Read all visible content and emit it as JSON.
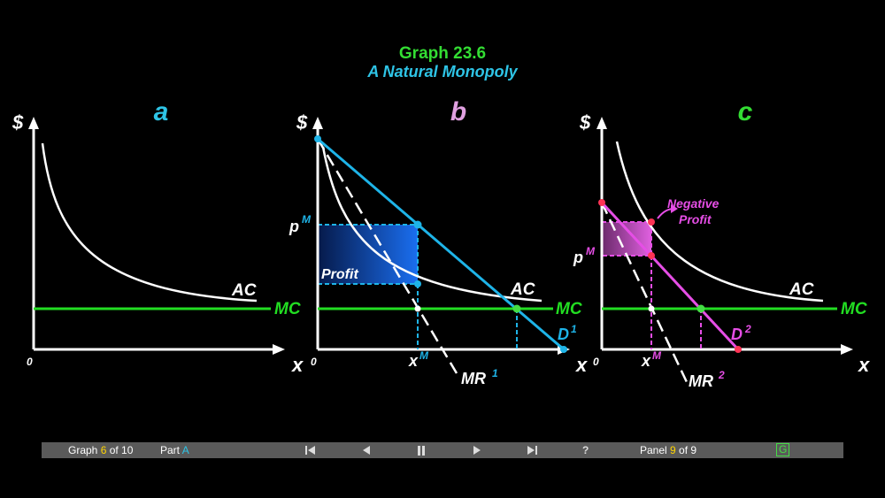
{
  "title": "Graph 23.6",
  "subtitle": "A Natural Monopoly",
  "colors": {
    "title": "#33dd33",
    "subtitle": "#2ec4e6",
    "axes": "#ffffff",
    "mc": "#22dd22",
    "ac": "#ffffff",
    "demand_b": "#1eb4e8",
    "demand_c": "#e64ee6",
    "profit": "#1565e0",
    "neg_profit": "#c050c0",
    "point_red": "#ff3355",
    "highlight": "#ffd400",
    "nav_bg": "#5a5a5a"
  },
  "panels": {
    "a": {
      "letter": "a",
      "letter_color": "#2ec4e6",
      "y_axis_label": "$",
      "x_axis_label": "x",
      "origin_label": "0",
      "ac_label": "AC",
      "mc_label": "MC"
    },
    "b": {
      "letter": "b",
      "letter_color": "#e0a0e0",
      "y_axis_label": "$",
      "x_axis_label": "x",
      "origin_label": "0",
      "ac_label": "AC",
      "mc_label": "MC",
      "price_label": "p",
      "price_sup": "M",
      "qty_label": "x",
      "qty_sup": "M",
      "profit_label": "Profit",
      "demand_label": "D",
      "demand_sup": "1",
      "mr_label": "MR",
      "mr_sup": "1"
    },
    "c": {
      "letter": "c",
      "letter_color": "#33dd33",
      "y_axis_label": "$",
      "x_axis_label": "x",
      "origin_label": "0",
      "ac_label": "AC",
      "mc_label": "MC",
      "price_label": "p",
      "price_sup": "M",
      "qty_label": "x",
      "qty_sup": "M",
      "neg_profit_line1": "Negative",
      "neg_profit_line2": "Profit",
      "demand_label": "D",
      "demand_sup": "2",
      "mr_label": "MR",
      "mr_sup": "2"
    }
  },
  "nav": {
    "graph_prefix": "Graph ",
    "graph_num": "6",
    "graph_suffix": " of 10",
    "part_prefix": "Part ",
    "part_val": "A",
    "help": "?",
    "panel_prefix": "Panel ",
    "panel_num": "9",
    "panel_suffix": " of 9",
    "g_button": "G",
    "icons": [
      "skip-first-icon",
      "previous-icon",
      "pause-icon",
      "next-icon",
      "skip-last-icon"
    ]
  }
}
